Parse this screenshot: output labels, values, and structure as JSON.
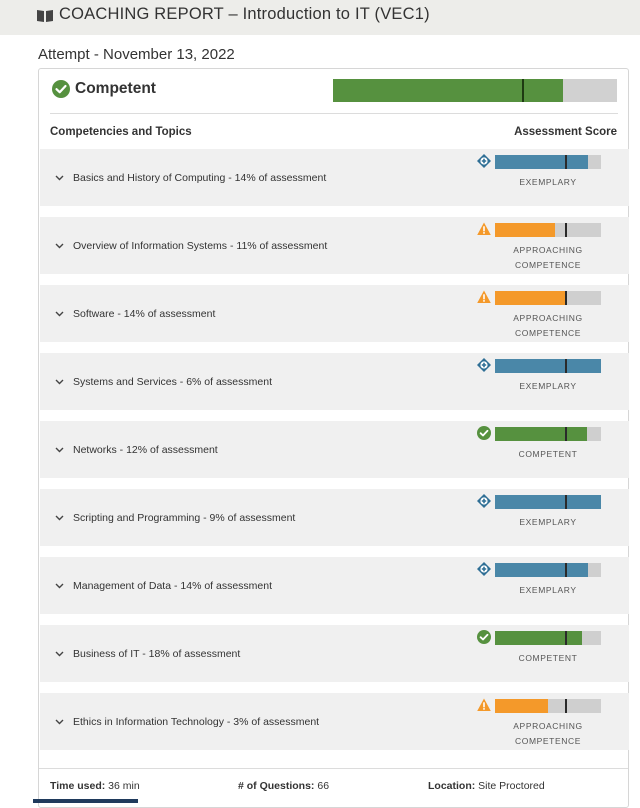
{
  "header": {
    "title": "COACHING REPORT – Introduction to IT (VEC1)",
    "icon": "book-icon"
  },
  "attempt": "Attempt - November 13, 2022",
  "overall": {
    "label": "Competent",
    "score_fraction": 0.81,
    "threshold_fraction": 0.665,
    "color": "#56913f"
  },
  "columns": {
    "left": "Competencies and Topics",
    "right": "Assessment Score"
  },
  "topics": [
    {
      "label": "Basics and History of Computing - 14% of assessment",
      "status": [
        "EXEMPLARY"
      ],
      "level": "exemplary",
      "score_fraction": 0.88
    },
    {
      "label": "Overview of Information Systems - 11% of assessment",
      "status": [
        "APPROACHING",
        "COMPETENCE"
      ],
      "level": "approaching",
      "score_fraction": 0.57
    },
    {
      "label": "Software - 14% of assessment",
      "status": [
        "APPROACHING",
        "COMPETENCE"
      ],
      "level": "approaching",
      "score_fraction": 0.66
    },
    {
      "label": "Systems and Services - 6% of assessment",
      "status": [
        "EXEMPLARY"
      ],
      "level": "exemplary",
      "score_fraction": 1.0
    },
    {
      "label": "Networks - 12% of assessment",
      "status": [
        "COMPETENT"
      ],
      "level": "competent",
      "score_fraction": 0.87
    },
    {
      "label": "Scripting and Programming - 9% of assessment",
      "status": [
        "EXEMPLARY"
      ],
      "level": "exemplary",
      "score_fraction": 1.0
    },
    {
      "label": "Management of Data - 14% of assessment",
      "status": [
        "EXEMPLARY"
      ],
      "level": "exemplary",
      "score_fraction": 0.88
    },
    {
      "label": "Business of IT - 18% of assessment",
      "status": [
        "COMPETENT"
      ],
      "level": "competent",
      "score_fraction": 0.82
    },
    {
      "label": "Ethics in Information Technology - 3% of assessment",
      "status": [
        "APPROACHING",
        "COMPETENCE"
      ],
      "level": "approaching",
      "score_fraction": 0.5
    }
  ],
  "topic_threshold_fraction": 0.66,
  "colors": {
    "exemplary": "#4a87a8",
    "approaching": "#f4992a",
    "competent": "#56913f"
  },
  "footer": {
    "time_label": "Time used:",
    "time_value": "36 min",
    "questions_label": "# of Questions:",
    "questions_value": "66",
    "location_label": "Location:",
    "location_value": "Site Proctored"
  }
}
